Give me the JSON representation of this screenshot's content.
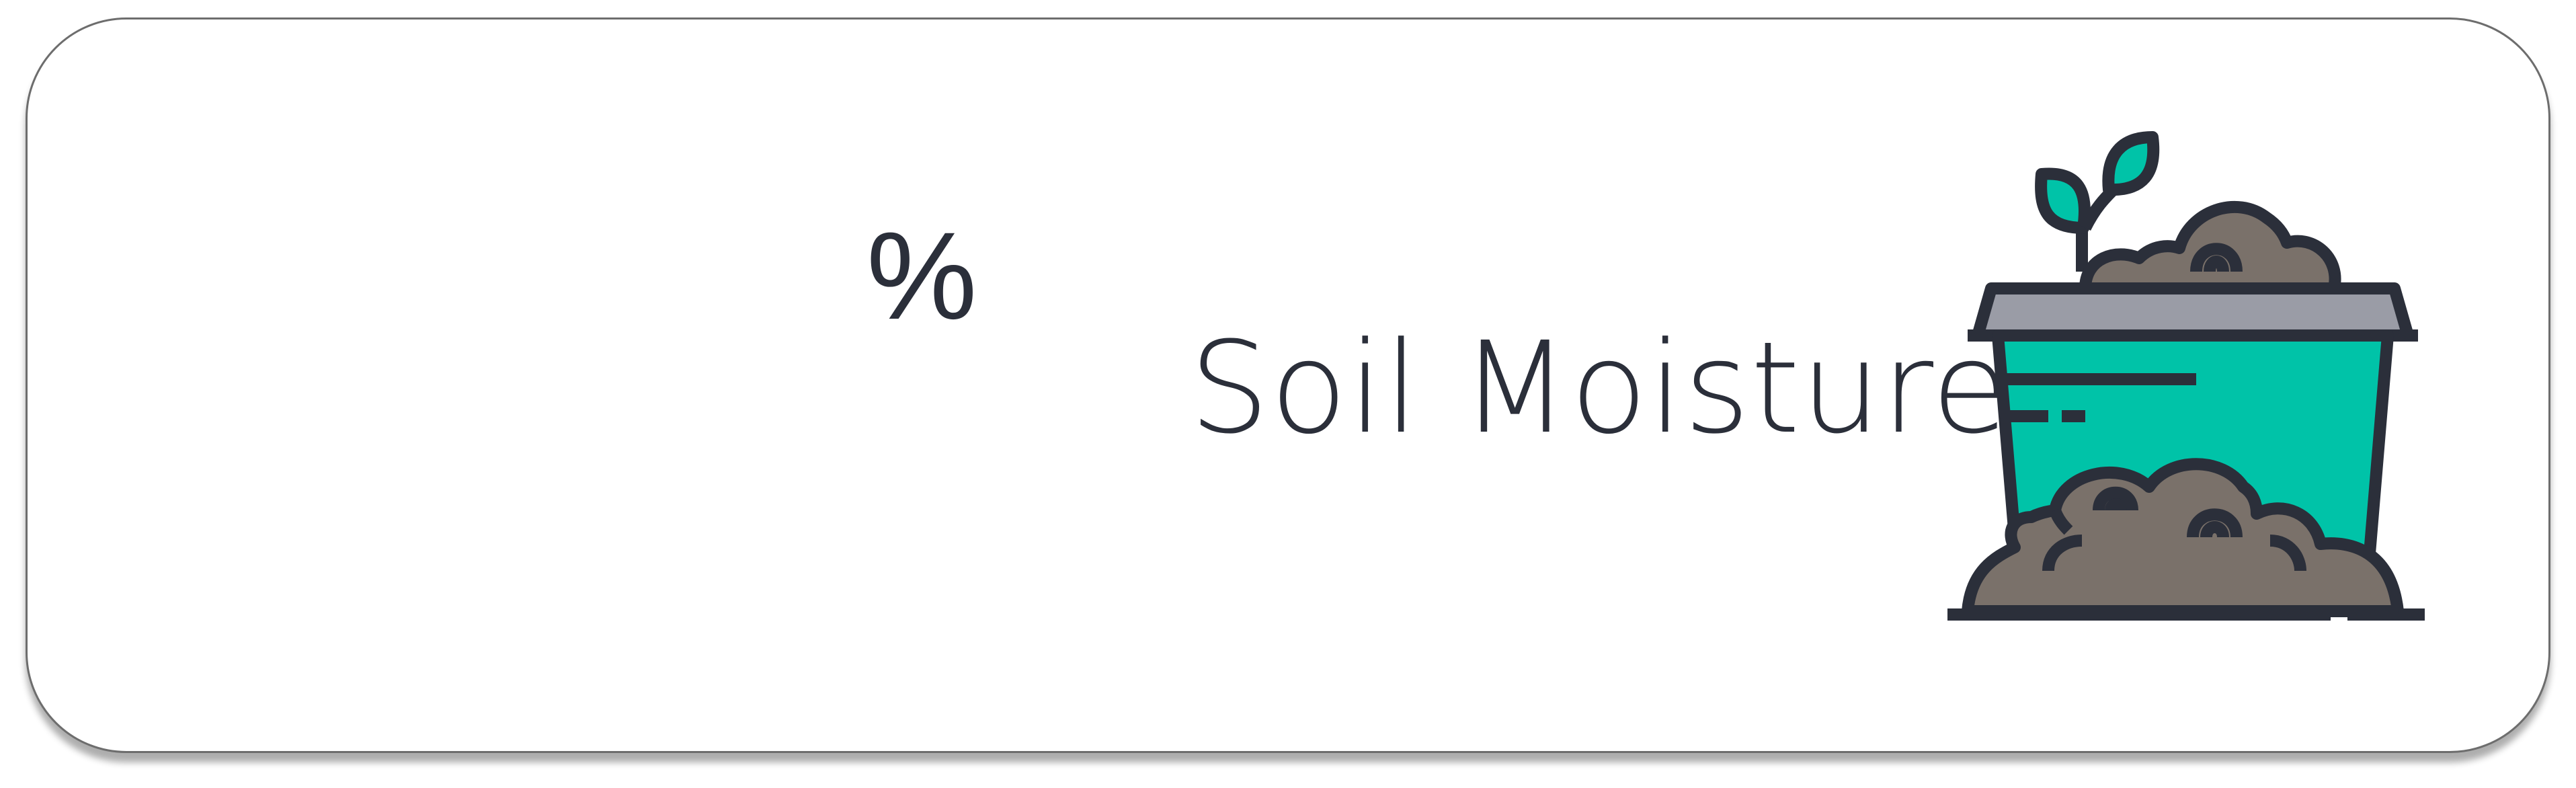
{
  "widget": {
    "value": "",
    "unit": "%",
    "label": "Soil Moisture",
    "icon": "soil-pot-sprout-icon"
  },
  "colors": {
    "text": "#2b2f3a",
    "pot_body": "#00c3a8",
    "pot_rim": "#9a9ca6",
    "soil": "#7a716a",
    "outline": "#2b2f3a",
    "leaf": "#00c3a8"
  }
}
